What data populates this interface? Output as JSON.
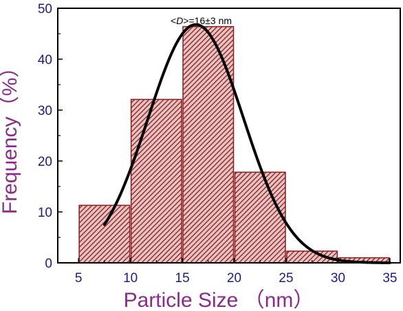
{
  "chart_data": {
    "type": "bar",
    "title": "",
    "xlabel": "Particle Size （nm）",
    "ylabel": "Frequency（%）",
    "annotation": {
      "prefix": "<",
      "variable": "D",
      "suffix": ">=16±3 nm"
    },
    "xlim": [
      3,
      36
    ],
    "ylim": [
      0,
      50
    ],
    "xticks": [
      5,
      10,
      15,
      20,
      25,
      30,
      35
    ],
    "yticks": [
      0,
      10,
      20,
      30,
      40,
      50
    ],
    "grid": false,
    "bins": [
      {
        "x0": 5,
        "x1": 10,
        "value": 11.3
      },
      {
        "x0": 10,
        "x1": 15,
        "value": 32.1
      },
      {
        "x0": 15,
        "x1": 20,
        "value": 46.4
      },
      {
        "x0": 20,
        "x1": 25,
        "value": 17.8
      },
      {
        "x0": 25,
        "x1": 30,
        "value": 2.3
      },
      {
        "x0": 30,
        "x1": 35,
        "value": 1.0
      }
    ],
    "fit_curve": {
      "type": "gaussian",
      "center": 16.3,
      "sigma": 4.6,
      "amplitude": 46.8,
      "x_range": [
        7.5,
        35
      ],
      "color": "#000000"
    },
    "bar_color": "#8b1a1a",
    "bar_fill": "#d9a9a9"
  }
}
